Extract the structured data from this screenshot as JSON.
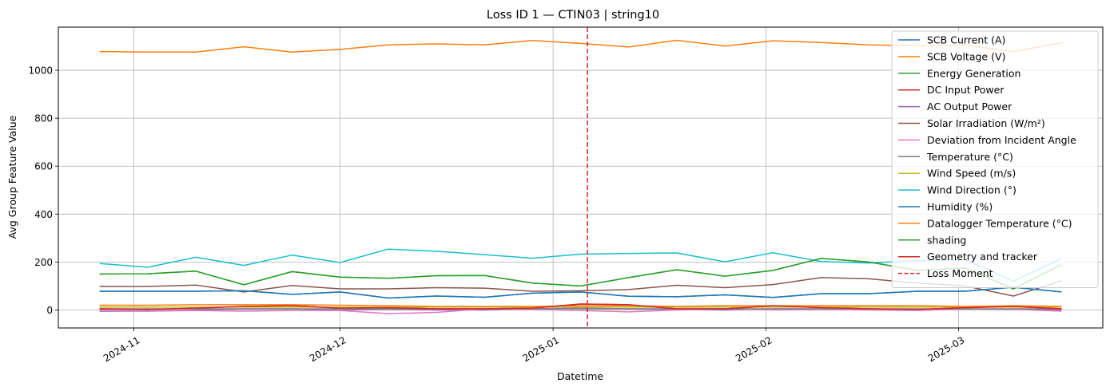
{
  "chart_data": {
    "type": "line",
    "title": "Loss ID 1 — CTIN03 | string10",
    "xlabel": "Datetime",
    "ylabel": "Avg Group Feature Value",
    "x_type": "date",
    "xlim": [
      "2024-10-21",
      "2025-03-22"
    ],
    "ylim": [
      -75,
      1180
    ],
    "grid": true,
    "legend_position": "top-right",
    "x_ticks": [
      {
        "date": "2024-11-01",
        "label": "2024-11"
      },
      {
        "date": "2024-12-01",
        "label": "2024-12"
      },
      {
        "date": "2025-01-01",
        "label": "2025-01"
      },
      {
        "date": "2025-02-01",
        "label": "2025-02"
      },
      {
        "date": "2025-03-01",
        "label": "2025-03"
      }
    ],
    "y_ticks": [
      0,
      200,
      400,
      600,
      800,
      1000
    ],
    "x": [
      "2024-10-27",
      "2024-11-03",
      "2024-11-10",
      "2024-11-17",
      "2024-11-24",
      "2024-12-01",
      "2024-12-08",
      "2024-12-15",
      "2024-12-22",
      "2024-12-29",
      "2025-01-05",
      "2025-01-12",
      "2025-01-19",
      "2025-01-26",
      "2025-02-02",
      "2025-02-09",
      "2025-02-16",
      "2025-02-23",
      "2025-03-02",
      "2025-03-09",
      "2025-03-16"
    ],
    "series": [
      {
        "name": "SCB Current (A)",
        "color": "#1f77b4",
        "values": [
          78,
          78,
          78,
          80,
          65,
          75,
          50,
          58,
          53,
          70,
          75,
          57,
          55,
          63,
          52,
          68,
          68,
          78,
          78,
          95,
          75
        ]
      },
      {
        "name": "SCB Voltage (V)",
        "color": "#ff7f0e",
        "values": [
          1078,
          1076,
          1076,
          1098,
          1076,
          1087,
          1106,
          1110,
          1106,
          1124,
          1112,
          1097,
          1125,
          1101,
          1123,
          1116,
          1106,
          1102,
          1105,
          1077,
          1115
        ]
      },
      {
        "name": "Energy Generation",
        "color": "#2ca02c",
        "values": [
          150,
          151,
          162,
          105,
          160,
          137,
          132,
          143,
          144,
          112,
          100,
          135,
          168,
          141,
          165,
          215,
          200,
          165,
          175,
          88,
          190
        ]
      },
      {
        "name": "DC Input Power",
        "color": "#d62728",
        "values": [
          5,
          2,
          8,
          15,
          18,
          8,
          10,
          5,
          5,
          8,
          25,
          22,
          5,
          5,
          18,
          10,
          5,
          2,
          10,
          15,
          5
        ]
      },
      {
        "name": "AC Output Power",
        "color": "#9467bd",
        "values": [
          -5,
          -5,
          0,
          5,
          5,
          0,
          3,
          0,
          0,
          5,
          8,
          5,
          3,
          0,
          5,
          5,
          3,
          3,
          5,
          3,
          0
        ]
      },
      {
        "name": "Solar Irradiation (W/m²)",
        "color": "#8c564b",
        "values": [
          98,
          98,
          104,
          75,
          102,
          88,
          88,
          93,
          91,
          78,
          80,
          85,
          103,
          93,
          106,
          135,
          130,
          112,
          100,
          58,
          122
        ]
      },
      {
        "name": "Deviation from Incident Angle",
        "color": "#e377c2",
        "values": [
          -2,
          -5,
          -2,
          -5,
          -2,
          -2,
          -15,
          -10,
          5,
          2,
          -2,
          -8,
          0,
          5,
          0,
          2,
          0,
          -2,
          5,
          3,
          -5
        ]
      },
      {
        "name": "Temperature (°C)",
        "color": "#7f7f7f",
        "values": [
          5,
          5,
          5,
          5,
          5,
          5,
          5,
          5,
          5,
          5,
          5,
          5,
          5,
          5,
          5,
          5,
          5,
          5,
          5,
          5,
          5
        ]
      },
      {
        "name": "Wind Speed (m/s)",
        "color": "#bcbd22",
        "values": [
          12,
          12,
          12,
          12,
          12,
          12,
          12,
          12,
          12,
          12,
          12,
          12,
          12,
          12,
          12,
          12,
          12,
          12,
          12,
          12,
          12
        ]
      },
      {
        "name": "Wind Direction (°)",
        "color": "#17becf",
        "values": [
          194,
          178,
          220,
          186,
          229,
          198,
          254,
          245,
          231,
          216,
          233,
          236,
          238,
          201,
          239,
          202,
          196,
          206,
          210,
          120,
          215
        ]
      },
      {
        "name": "Humidity (%)",
        "color": "#1f77b4",
        "values": [
          78,
          78,
          78,
          80,
          65,
          75,
          50,
          58,
          53,
          70,
          75,
          57,
          55,
          63,
          52,
          68,
          68,
          78,
          78,
          95,
          75
        ]
      },
      {
        "name": "Datalogger Temperature (°C)",
        "color": "#ff7f0e",
        "values": [
          20,
          20,
          22,
          22,
          22,
          20,
          18,
          15,
          15,
          15,
          18,
          18,
          15,
          18,
          18,
          18,
          18,
          18,
          15,
          18,
          15
        ]
      },
      {
        "name": "shading",
        "color": "#2ca02c",
        "values": [
          150,
          151,
          162,
          105,
          160,
          137,
          132,
          143,
          144,
          112,
          100,
          135,
          168,
          141,
          165,
          215,
          200,
          165,
          175,
          88,
          190
        ]
      },
      {
        "name": "Geometry and tracker",
        "color": "#d62728",
        "values": [
          5,
          2,
          8,
          15,
          18,
          8,
          10,
          5,
          5,
          8,
          25,
          22,
          5,
          5,
          18,
          10,
          5,
          2,
          10,
          15,
          5
        ]
      }
    ],
    "markers": [
      {
        "name": "Loss Moment",
        "date": "2025-01-06",
        "color": "#d62728",
        "style": "dashed"
      }
    ]
  }
}
